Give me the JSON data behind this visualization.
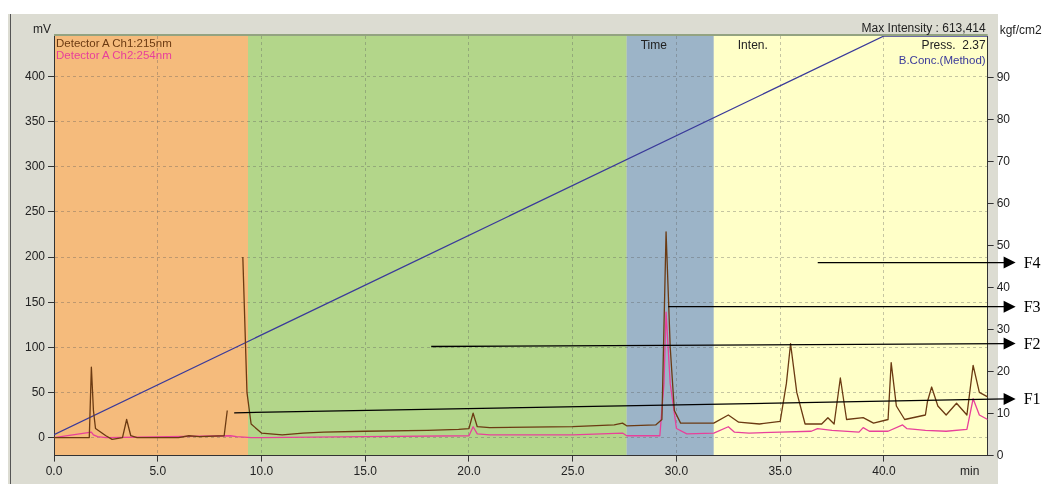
{
  "chart_data": {
    "type": "line",
    "xlabel": "min",
    "ylabel": "mV",
    "y2label": "kgf/cm2",
    "xlim": [
      0,
      45
    ],
    "xticks": [
      {
        "value": 0,
        "label": "0.0"
      },
      {
        "value": 5,
        "label": "5.0"
      },
      {
        "value": 10,
        "label": "10.0"
      },
      {
        "value": 15,
        "label": "15.0"
      },
      {
        "value": 20,
        "label": "20.0"
      },
      {
        "value": 25,
        "label": "25.0"
      },
      {
        "value": 30,
        "label": "30.0"
      },
      {
        "value": 35,
        "label": "35.0"
      },
      {
        "value": 40,
        "label": "40.0"
      }
    ],
    "ylim": [
      -20,
      445
    ],
    "yticks": [
      0,
      50,
      100,
      150,
      200,
      250,
      300,
      350,
      400
    ],
    "y2lim": [
      0,
      100
    ],
    "y2ticks": [
      0,
      10,
      20,
      30,
      40,
      50,
      60,
      70,
      80,
      90
    ],
    "grid": true,
    "legend": "top left",
    "marker": "none",
    "line_style": "solid",
    "series": [
      {
        "name": "Detector A Ch1:215nm",
        "color": "#6b3a12",
        "x": [
          0,
          1.7,
          1.8,
          1.9,
          2.0,
          2.5,
          2.8,
          3.3,
          3.5,
          3.7,
          4.0,
          6.0,
          6.5,
          7.0,
          8.2,
          8.35,
          8.5,
          9.0,
          9.1,
          9.3,
          9.5,
          10,
          11,
          12,
          13,
          15,
          18,
          19.5,
          20,
          20.2,
          20.4,
          21,
          25,
          27,
          27.4,
          27.6,
          29,
          29.3,
          29.5,
          29.7,
          29.9,
          30.2,
          31.8,
          32.5,
          33,
          34,
          35,
          35.3,
          35.5,
          35.8,
          36.2,
          37,
          37.3,
          37.6,
          37.9,
          38.2,
          39,
          39.5,
          40.2,
          40.35,
          40.6,
          41,
          42,
          42.1,
          42.3,
          42.6,
          43,
          43.5,
          44,
          44.3,
          44.6,
          45
        ],
        "values": [
          0,
          0,
          78,
          30,
          10,
          2,
          -2,
          0,
          20,
          2,
          0,
          0,
          2,
          1,
          2,
          30,
          null,
          null,
          200,
          50,
          15,
          5,
          3,
          5,
          6,
          7,
          8,
          9,
          10,
          27,
          12,
          11,
          12,
          14,
          16,
          13,
          14,
          20,
          228,
          100,
          30,
          16,
          16,
          25,
          17,
          15,
          18,
          60,
          104,
          50,
          15,
          15,
          22,
          15,
          66,
          20,
          22,
          16,
          20,
          83,
          35,
          20,
          25,
          40,
          56,
          35,
          25,
          38,
          25,
          80,
          50,
          45
        ]
      },
      {
        "name": "Detector A Ch2:254nm",
        "color": "#e8409a",
        "x": [
          0,
          1.8,
          1.9,
          2.1,
          2.5,
          8.5,
          8.8,
          9.5,
          10,
          15,
          20,
          20.2,
          20.4,
          21,
          25,
          27.4,
          27.6,
          29.2,
          29.4,
          29.5,
          29.7,
          30,
          30.5,
          31.8,
          32.5,
          32.8,
          33.5,
          35,
          36.5,
          36.8,
          37.5,
          38.8,
          39,
          39.3,
          40.2,
          40.9,
          41.1,
          41.5,
          42,
          43,
          44,
          44.3,
          44.6,
          45
        ],
        "values": [
          0,
          6,
          3,
          1,
          0,
          2,
          1,
          0,
          0,
          1,
          2,
          12,
          4,
          3,
          3,
          5,
          2,
          2,
          60,
          139,
          60,
          10,
          4,
          5,
          12,
          6,
          5,
          6,
          7,
          10,
          8,
          6,
          11,
          7,
          7,
          14,
          10,
          9,
          8,
          7,
          9,
          43,
          25,
          20
        ]
      },
      {
        "name": "B.Conc.(Method)",
        "color": "#3a3a9a",
        "axis": "y2",
        "x": [
          0,
          40,
          45
        ],
        "values": [
          5,
          100,
          100
        ]
      }
    ],
    "bands": [
      {
        "axis": "x",
        "from": 0,
        "to": 9.35,
        "color": "#f5bb7c"
      },
      {
        "axis": "x",
        "from": 9.35,
        "to": 27.6,
        "color": "#b3d68a"
      },
      {
        "axis": "x",
        "from": 27.6,
        "to": 31.8,
        "color": "#9cb4c8"
      },
      {
        "axis": "x",
        "from": 31.8,
        "to": 45,
        "color": "#ffffc8"
      }
    ],
    "annotations": [
      "Max Intensity : 613,414",
      "Time",
      "Inten.",
      "Press.  2.37",
      "F1",
      "F2",
      "F3",
      "F4"
    ]
  }
}
